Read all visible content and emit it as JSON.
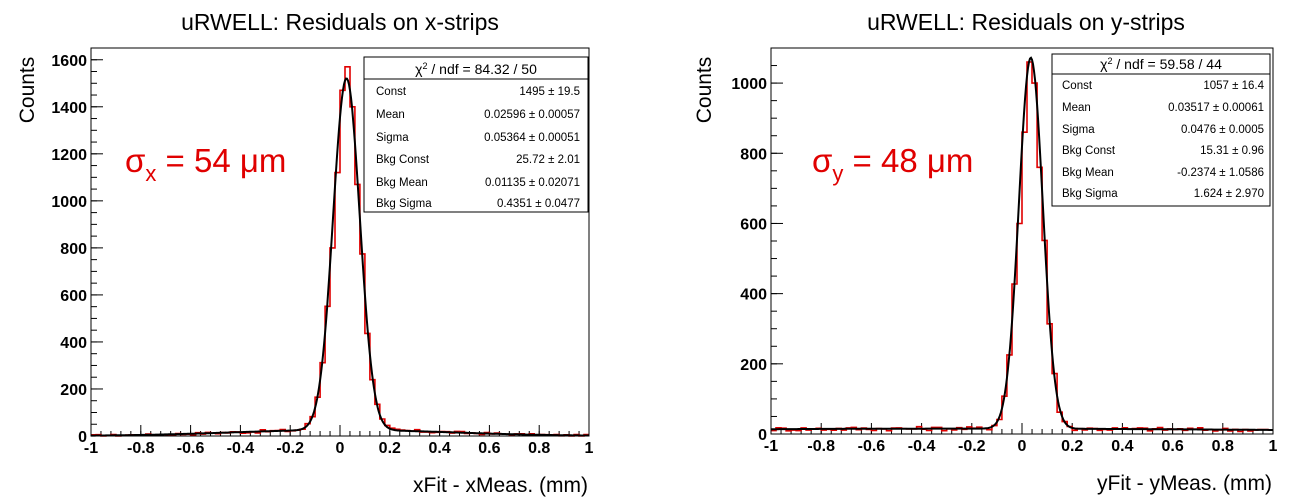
{
  "chart_data": [
    {
      "type": "histogram",
      "title": "uRWELL: Residuals on x-strips",
      "xlabel": "xFit - xMeas. (mm)",
      "ylabel": "Counts",
      "xlim": [
        -1,
        1
      ],
      "ylim": [
        0,
        1650
      ],
      "xticks": [
        "-1",
        "-0.8",
        "-0.6",
        "-0.4",
        "-0.2",
        "0",
        "0.2",
        "0.4",
        "0.6",
        "0.8",
        "1"
      ],
      "yticks": [
        "0",
        "200",
        "400",
        "600",
        "800",
        "1000",
        "1200",
        "1400",
        "1600"
      ],
      "grid": false,
      "bin_width": 0.02,
      "fit": {
        "const": 1495,
        "mean": 0.02596,
        "sigma": 0.05364,
        "bkg_const": 25.72,
        "bkg_mean": 0.01135,
        "bkg_sigma": 0.4351
      },
      "bin_centers": [
        -0.03,
        -0.01,
        0.01,
        0.03,
        0.05,
        0.07
      ],
      "bin_values": [
        800,
        1120,
        1470,
        1570,
        1400,
        1070
      ],
      "stats": {
        "header_sym": "χ",
        "header_sup": "2",
        "header_rest": " / ndf = 84.32 / 50",
        "rows": [
          {
            "label": "Const",
            "value": "1495 ± 19.5"
          },
          {
            "label": "Mean",
            "value": "0.02596 ± 0.00057"
          },
          {
            "label": "Sigma",
            "value": "0.05364 ± 0.00051"
          },
          {
            "label": "Bkg Const",
            "value": "25.72 ± 2.01"
          },
          {
            "label": "Bkg Mean",
            "value": "0.01135 ± 0.02071"
          },
          {
            "label": "Bkg Sigma",
            "value": "0.4351 ± 0.0477"
          }
        ]
      },
      "annotation": {
        "sigma": "σ",
        "sub": "x",
        "rest": " = 54 μm"
      },
      "colors": {
        "histogram": "#e00000",
        "fit": "#000000",
        "annotation": "#e00000"
      }
    },
    {
      "type": "histogram",
      "title": "uRWELL: Residuals on y-strips",
      "xlabel": "yFit - yMeas. (mm)",
      "ylabel": "Counts",
      "xlim": [
        -1,
        1
      ],
      "ylim": [
        0,
        1100
      ],
      "xticks": [
        "-1",
        "-0.8",
        "-0.6",
        "-0.4",
        "-0.2",
        "0",
        "0.2",
        "0.4",
        "0.6",
        "0.8",
        "1"
      ],
      "yticks": [
        "0",
        "200",
        "400",
        "600",
        "800",
        "1000"
      ],
      "grid": false,
      "bin_width": 0.02,
      "fit": {
        "const": 1057,
        "mean": 0.03517,
        "sigma": 0.0476,
        "bkg_const": 15.31,
        "bkg_mean": -0.2374,
        "bkg_sigma": 1.624
      },
      "bin_centers": [
        -0.01,
        0.01,
        0.03,
        0.05,
        0.07
      ],
      "bin_values": [
        600,
        860,
        1060,
        1000,
        760
      ],
      "stats": {
        "header_sym": "χ",
        "header_sup": "2",
        "header_rest": " / ndf = 59.58 / 44",
        "rows": [
          {
            "label": "Const",
            "value": "1057 ± 16.4"
          },
          {
            "label": "Mean",
            "value": "0.03517 ± 0.00061"
          },
          {
            "label": "Sigma",
            "value": "0.0476 ± 0.0005"
          },
          {
            "label": "Bkg Const",
            "value": "15.31 ± 0.96"
          },
          {
            "label": "Bkg Mean",
            "value": "-0.2374 ± 1.0586"
          },
          {
            "label": "Bkg Sigma",
            "value": "1.624 ± 2.970"
          }
        ]
      },
      "annotation": {
        "sigma": "σ",
        "sub": "y",
        "rest": " = 48 μm"
      },
      "colors": {
        "histogram": "#e00000",
        "fit": "#000000",
        "annotation": "#e00000"
      }
    }
  ]
}
